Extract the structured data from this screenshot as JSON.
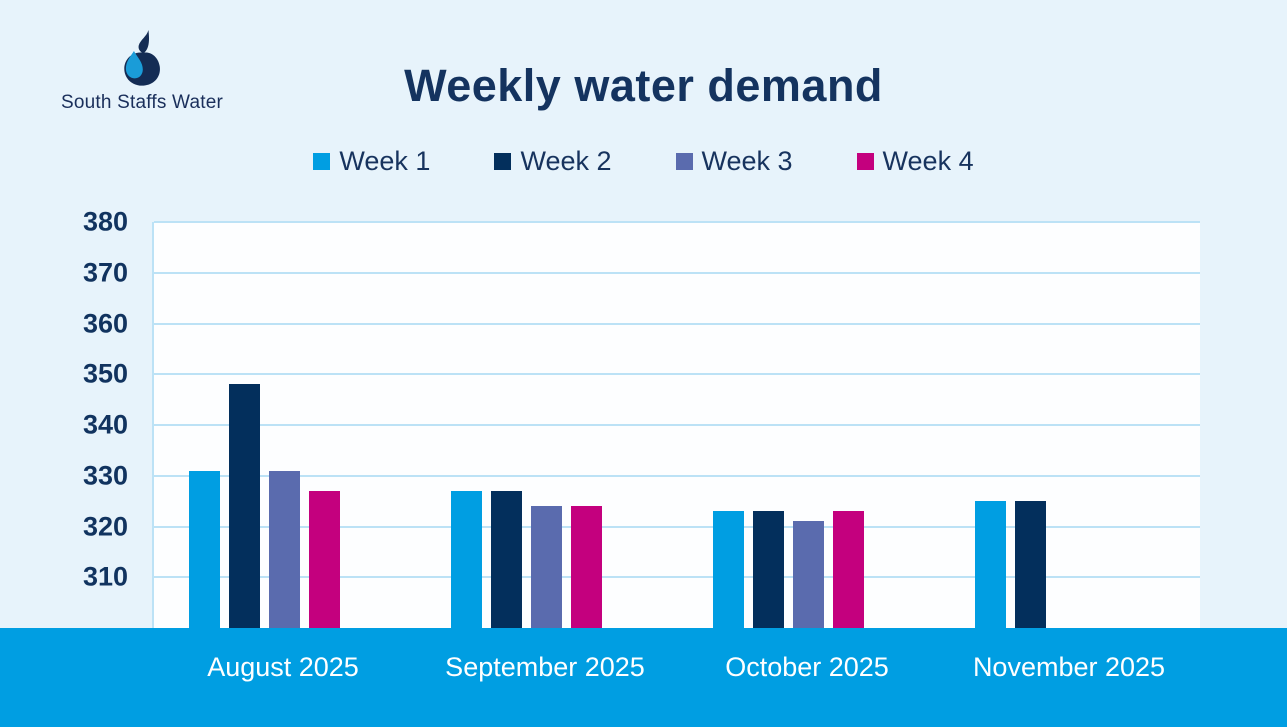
{
  "brand": {
    "logo_text": "South Staffs Water",
    "logo_icon": "water-drop-logo",
    "logo_navy": "#142c54",
    "logo_blue": "#1a9cd8"
  },
  "header": {
    "title": "Weekly water demand"
  },
  "colors": {
    "page_background": "#e7f3fb",
    "plot_background": "#fdfeff",
    "gridline": "#bce2f6",
    "text_navy": "#14335f",
    "footer_band": "#009ee2",
    "x_label_text": "#ffffff"
  },
  "chart_data": {
    "type": "bar",
    "title": "Weekly water demand",
    "categories": [
      "August 2025",
      "September 2025",
      "October 2025",
      "November 2025"
    ],
    "series": [
      {
        "name": "Week 1",
        "color": "#009ee2",
        "values": [
          331,
          327,
          323,
          325
        ]
      },
      {
        "name": "Week 2",
        "color": "#032f5c",
        "values": [
          348,
          327,
          323,
          325
        ]
      },
      {
        "name": "Week 3",
        "color": "#5a6bae",
        "values": [
          331,
          324,
          321,
          null
        ]
      },
      {
        "name": "Week 4",
        "color": "#c4007e",
        "values": [
          327,
          324,
          323,
          null
        ]
      }
    ],
    "xlabel": "",
    "ylabel": "",
    "ylim": [
      300,
      380
    ],
    "yticks": [
      310,
      320,
      330,
      340,
      350,
      360,
      370,
      380
    ],
    "grid": true,
    "legend_position": "top",
    "legend_labels": [
      "Week 1",
      "Week 2",
      "Week 3",
      "Week 4"
    ]
  }
}
